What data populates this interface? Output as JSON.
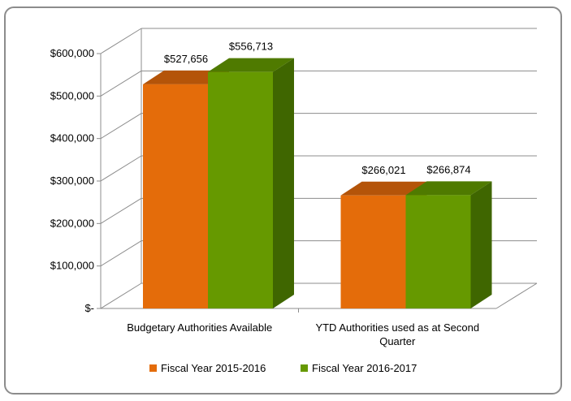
{
  "chart_data": {
    "type": "bar",
    "style": "3d-clustered-column",
    "categories": [
      "Budgetary Authorities Available",
      "YTD Authorities used as at Second Quarter"
    ],
    "series": [
      {
        "name": "Fiscal Year 2015-2016",
        "values": [
          527656,
          266021
        ],
        "data_labels": [
          "$527,656",
          "$266,021"
        ],
        "color": "#e46c0a",
        "top_color": "#b45409",
        "side_color": "#a04a08"
      },
      {
        "name": "Fiscal Year 2016-2017",
        "values": [
          556713,
          266874
        ],
        "data_labels": [
          "$556,713",
          "$266,874"
        ],
        "color": "#669900",
        "top_color": "#4f7a00",
        "side_color": "#3f6600"
      }
    ],
    "y_ticks": [
      0,
      100000,
      200000,
      300000,
      400000,
      500000,
      600000
    ],
    "y_tick_labels": [
      "$-",
      "$100,000",
      "$200,000",
      "$300,000",
      "$400,000",
      "$500,000",
      "$600,000"
    ],
    "ylim": [
      0,
      600000
    ],
    "grid": true,
    "legend_position": "bottom",
    "title": "",
    "xlabel": "",
    "ylabel": ""
  }
}
